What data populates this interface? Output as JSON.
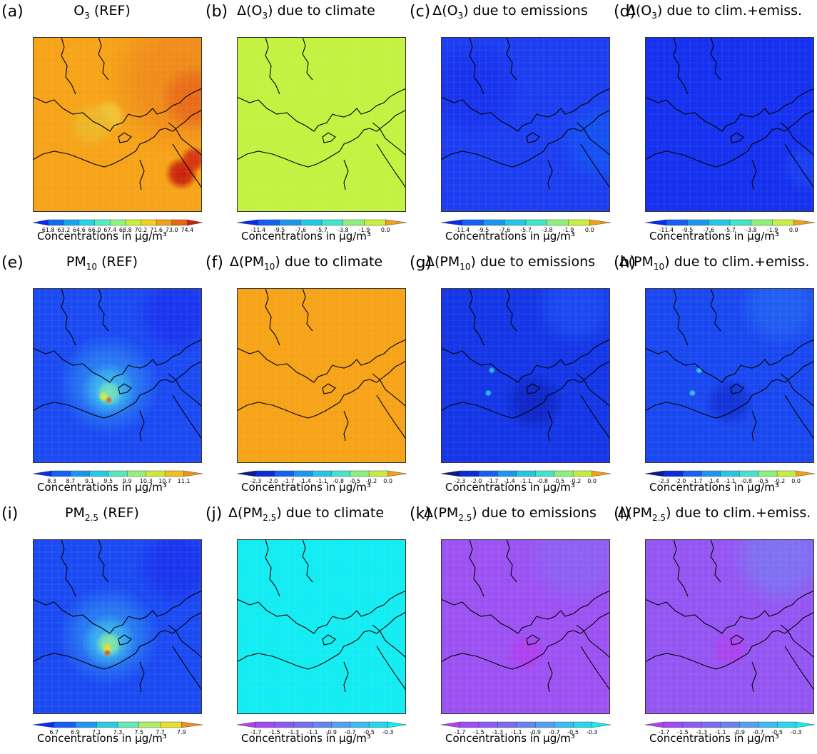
{
  "colorbar_label": "Concentrations in μg/m³",
  "chart_data": [
    {
      "label": "(a)",
      "title_pre": "O",
      "title_sub": "3",
      "title_post": " (REF)",
      "type": "heatmap",
      "colorbar_ticks": [
        "61.8",
        "63.2",
        "64.6",
        "66.0",
        "67.4",
        "68.8",
        "70.2",
        "71.6",
        "73.0",
        "74.4"
      ],
      "colorbar_colors": [
        "#0a2bf0",
        "#0f6cf2",
        "#12a6f0",
        "#22d5e8",
        "#52efc2",
        "#8ff57e",
        "#c6f040",
        "#f0d020",
        "#f0a018",
        "#e46812",
        "#c8240c"
      ],
      "map_base": "#f6a318",
      "map_blobs": [
        {
          "c": "#ee8a1a",
          "x": 0.88,
          "y": 0.25,
          "r": 0.45
        },
        {
          "c": "#e86a18",
          "x": 0.95,
          "y": 0.35,
          "r": 0.2
        },
        {
          "c": "#c81e0c",
          "x": 0.88,
          "y": 0.78,
          "r": 0.1
        },
        {
          "c": "#d43010",
          "x": 0.95,
          "y": 0.7,
          "r": 0.08
        },
        {
          "c": "#f0c43a",
          "x": 0.45,
          "y": 0.45,
          "r": 0.1
        },
        {
          "c": "#ecb828",
          "x": 0.35,
          "y": 0.5,
          "r": 0.14
        }
      ]
    },
    {
      "label": "(b)",
      "title_pre": "Δ(O",
      "title_sub": "3",
      "title_post": ") due to climate",
      "type": "heatmap",
      "colorbar_ticks": [
        "-11.4",
        "-9.5",
        "-7.6",
        "-5.7",
        "-3.8",
        "-1.9",
        "0.0"
      ],
      "colorbar_colors": [
        "#0a2bf0",
        "#1360f2",
        "#1a96f0",
        "#22c8e8",
        "#40e6c8",
        "#8ef07a",
        "#c6f040",
        "#f0a018"
      ],
      "map_base": "#c3f240",
      "map_blobs": []
    },
    {
      "label": "(c)",
      "title_pre": "Δ(O",
      "title_sub": "3",
      "title_post": ") due to emissions",
      "type": "heatmap",
      "colorbar_ticks": [
        "-11.4",
        "-9.5",
        "-7.6",
        "-5.7",
        "-3.8",
        "-1.9",
        "0.0"
      ],
      "colorbar_colors": [
        "#0a2bf0",
        "#1360f2",
        "#1a96f0",
        "#22c8e8",
        "#40e6c8",
        "#8ef07a",
        "#c6f040",
        "#f0a018"
      ],
      "map_base": "#1c3ef0",
      "map_blobs": [
        {
          "c": "#1452f2",
          "x": 0.95,
          "y": 0.6,
          "r": 0.25
        },
        {
          "c": "#1832ee",
          "x": 0.2,
          "y": 0.3,
          "r": 0.3
        }
      ]
    },
    {
      "label": "(d)",
      "title_pre": "Δ(O",
      "title_sub": "3",
      "title_post": ") due to clim.+emiss.",
      "type": "heatmap",
      "colorbar_ticks": [
        "-11.4",
        "-9.5",
        "-7.6",
        "-5.7",
        "-3.8",
        "-1.9",
        "0.0"
      ],
      "colorbar_colors": [
        "#0a2bf0",
        "#1360f2",
        "#1a96f0",
        "#22c8e8",
        "#40e6c8",
        "#8ef07a",
        "#c6f040",
        "#f0a018"
      ],
      "map_base": "#1530ee",
      "map_blobs": [
        {
          "c": "#1a40f0",
          "x": 0.95,
          "y": 0.75,
          "r": 0.15
        }
      ]
    },
    {
      "label": "(e)",
      "title_pre": "PM",
      "title_sub": "10",
      "title_post": " (REF)",
      "type": "heatmap",
      "colorbar_ticks": [
        "8.3",
        "8.7",
        "9.1",
        "9.5",
        "9.9",
        "10.3",
        "10.7",
        "11.1"
      ],
      "colorbar_colors": [
        "#0a2bf0",
        "#1460f2",
        "#1a96f0",
        "#28c8e6",
        "#56e6bc",
        "#96f07a",
        "#cfe83c",
        "#f0c020",
        "#f09020"
      ],
      "map_base": "#1b4af2",
      "map_blobs": [
        {
          "c": "#2a7ef2",
          "x": 0.45,
          "y": 0.55,
          "r": 0.3
        },
        {
          "c": "#3ab4ee",
          "x": 0.45,
          "y": 0.58,
          "r": 0.16
        },
        {
          "c": "#70e0c0",
          "x": 0.45,
          "y": 0.6,
          "r": 0.08
        },
        {
          "c": "#d8ec40",
          "x": 0.42,
          "y": 0.62,
          "r": 0.03
        },
        {
          "c": "#e06820",
          "x": 0.45,
          "y": 0.64,
          "r": 0.02
        },
        {
          "c": "#1a34ee",
          "x": 0.85,
          "y": 0.15,
          "r": 0.25
        }
      ]
    },
    {
      "label": "(f)",
      "title_pre": "Δ(PM",
      "title_sub": "10",
      "title_post": ") due to climate",
      "type": "heatmap",
      "colorbar_ticks": [
        "-2.3",
        "-2.0",
        "-1.7",
        "-1.4",
        "-1.1",
        "-0.8",
        "-0.5",
        "-0.2",
        "0.0"
      ],
      "colorbar_colors": [
        "#0a1a8c",
        "#0c2cd8",
        "#1560f2",
        "#1c96f0",
        "#26c4e6",
        "#46e2cc",
        "#8af07e",
        "#c6ec44",
        "#f0a018"
      ],
      "map_base": "#f6a318",
      "map_blobs": []
    },
    {
      "label": "(g)",
      "title_pre": "Δ(PM",
      "title_sub": "10",
      "title_post": ") due to emissions",
      "type": "heatmap",
      "colorbar_ticks": [
        "-2.3",
        "-2.0",
        "-1.7",
        "-1.4",
        "-1.1",
        "-0.8",
        "-0.5",
        "-0.2",
        "0.0"
      ],
      "colorbar_colors": [
        "#0a1a8c",
        "#0c2cd8",
        "#1560f2",
        "#1c96f0",
        "#26c4e6",
        "#46e2cc",
        "#8af07e",
        "#c6ec44",
        "#f0a018"
      ],
      "map_base": "#1436e6",
      "map_blobs": [
        {
          "c": "#1c4af2",
          "x": 0.8,
          "y": 0.1,
          "r": 0.25
        },
        {
          "c": "#0e26c4",
          "x": 0.55,
          "y": 0.65,
          "r": 0.18
        },
        {
          "c": "#2ec0ee",
          "x": 0.3,
          "y": 0.47,
          "r": 0.02
        },
        {
          "c": "#2ec0ee",
          "x": 0.28,
          "y": 0.6,
          "r": 0.02
        }
      ]
    },
    {
      "label": "(h)",
      "title_pre": "Δ(PM",
      "title_sub": "10",
      "title_post": ") due to clim.+emiss.",
      "type": "heatmap",
      "colorbar_ticks": [
        "-2.3",
        "-2.0",
        "-1.7",
        "-1.4",
        "-1.1",
        "-0.8",
        "-0.5",
        "-0.2",
        "0.0"
      ],
      "colorbar_colors": [
        "#0a1a8c",
        "#0c2cd8",
        "#1560f2",
        "#1c96f0",
        "#26c4e6",
        "#46e2cc",
        "#8af07e",
        "#c6ec44",
        "#f0a018"
      ],
      "map_base": "#1a48f0",
      "map_blobs": [
        {
          "c": "#2260f2",
          "x": 0.8,
          "y": 0.1,
          "r": 0.25
        },
        {
          "c": "#1232d4",
          "x": 0.5,
          "y": 0.65,
          "r": 0.15
        },
        {
          "c": "#38ccec",
          "x": 0.32,
          "y": 0.47,
          "r": 0.02
        },
        {
          "c": "#38ccec",
          "x": 0.28,
          "y": 0.6,
          "r": 0.02
        }
      ]
    },
    {
      "label": "(i)",
      "title_pre": "PM",
      "title_sub": "2.5",
      "title_post": " (REF)",
      "type": "heatmap",
      "colorbar_ticks": [
        "6.7",
        "6.9",
        "7.1",
        "7.3",
        "7.5",
        "7.7",
        "7.9"
      ],
      "colorbar_colors": [
        "#0a2bf0",
        "#1460f2",
        "#1c98f0",
        "#2ecae4",
        "#6ae6b4",
        "#acee64",
        "#e6de30",
        "#f09020"
      ],
      "map_base": "#1b4af2",
      "map_blobs": [
        {
          "c": "#2a7ef2",
          "x": 0.45,
          "y": 0.55,
          "r": 0.3
        },
        {
          "c": "#3ab4ee",
          "x": 0.45,
          "y": 0.58,
          "r": 0.16
        },
        {
          "c": "#80e6a8",
          "x": 0.45,
          "y": 0.6,
          "r": 0.08
        },
        {
          "c": "#e4dc34",
          "x": 0.44,
          "y": 0.62,
          "r": 0.03
        },
        {
          "c": "#e05a1c",
          "x": 0.44,
          "y": 0.65,
          "r": 0.02
        },
        {
          "c": "#1a34ee",
          "x": 0.85,
          "y": 0.15,
          "r": 0.25
        }
      ]
    },
    {
      "label": "(j)",
      "title_pre": "Δ(PM",
      "title_sub": "2.5",
      "title_post": ") due to climate",
      "type": "heatmap",
      "colorbar_ticks": [
        "-1.7",
        "-1.5",
        "-1.3",
        "-1.1",
        "-0.9",
        "-0.7",
        "-0.5",
        "-0.3"
      ],
      "colorbar_colors": [
        "#b040f0",
        "#a04cf0",
        "#8c5cf0",
        "#7a6cf0",
        "#6684f0",
        "#52a0f0",
        "#3cbcf0",
        "#28d6ee",
        "#12eef0"
      ],
      "map_base": "#12ecf2",
      "map_blobs": []
    },
    {
      "label": "(k)",
      "title_pre": "Δ(PM",
      "title_sub": "2.5",
      "title_post": ") due to emissions",
      "type": "heatmap",
      "colorbar_ticks": [
        "-1.7",
        "-1.5",
        "-1.3",
        "-1.1",
        "-0.9",
        "-0.7",
        "-0.5",
        "-0.3"
      ],
      "colorbar_colors": [
        "#b040f0",
        "#a04cf0",
        "#8c5cf0",
        "#7a6cf0",
        "#6684f0",
        "#52a0f0",
        "#3cbcf0",
        "#28d6ee",
        "#12eef0"
      ],
      "map_base": "#9c52f2",
      "map_blobs": [
        {
          "c": "#8c62f2",
          "x": 0.8,
          "y": 0.1,
          "r": 0.3
        },
        {
          "c": "#b040f0",
          "x": 0.5,
          "y": 0.65,
          "r": 0.12
        }
      ]
    },
    {
      "label": "(l)",
      "title_pre": "Δ(PM",
      "title_sub": "2.5",
      "title_post": ") due to clim.+emiss.",
      "type": "heatmap",
      "colorbar_ticks": [
        "-1.7",
        "-1.5",
        "-1.3",
        "-1.1",
        "-0.9",
        "-0.7",
        "-0.5",
        "-0.3"
      ],
      "colorbar_colors": [
        "#b040f0",
        "#a04cf0",
        "#8c5cf0",
        "#7a6cf0",
        "#6684f0",
        "#52a0f0",
        "#3cbcf0",
        "#28d6ee",
        "#12eef0"
      ],
      "map_base": "#9456f2",
      "map_blobs": [
        {
          "c": "#7e72f2",
          "x": 0.8,
          "y": 0.1,
          "r": 0.3
        },
        {
          "c": "#ac44f0",
          "x": 0.5,
          "y": 0.63,
          "r": 0.12
        }
      ]
    }
  ]
}
